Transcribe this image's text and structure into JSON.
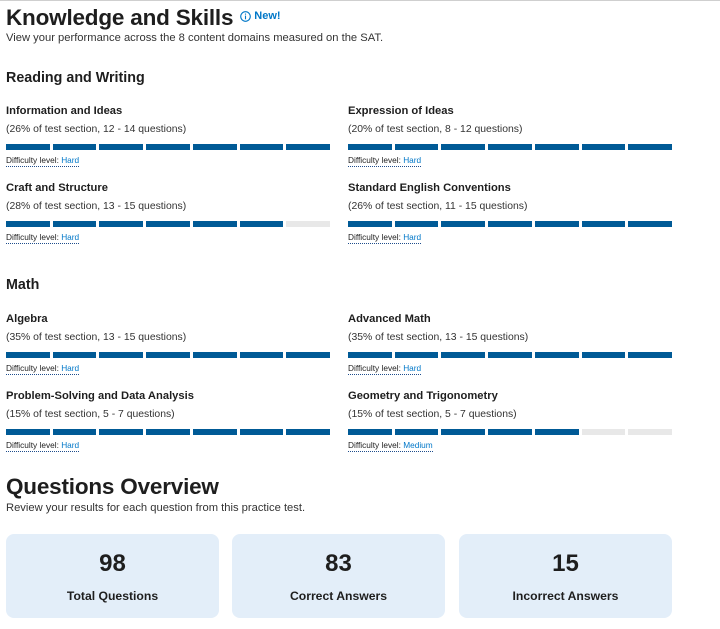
{
  "knowledge_skills": {
    "title": "Knowledge and Skills",
    "new_badge": "New!",
    "subtitle": "View your performance across the 8 content domains measured on the SAT.",
    "difficulty_label": "Difficulty level:"
  },
  "reading_writing": {
    "heading": "Reading and Writing",
    "domains": [
      {
        "name": "Information and Ideas",
        "meta": "(26% of test section, 12 - 14 questions)",
        "filled": 7,
        "total": 7,
        "difficulty": "Hard"
      },
      {
        "name": "Expression of Ideas",
        "meta": "(20% of test section, 8 - 12 questions)",
        "filled": 7,
        "total": 7,
        "difficulty": "Hard"
      },
      {
        "name": "Craft and Structure",
        "meta": "(28% of test section, 13 - 15 questions)",
        "filled": 6,
        "total": 7,
        "difficulty": "Hard"
      },
      {
        "name": "Standard English Conventions",
        "meta": "(26% of test section, 11 - 15 questions)",
        "filled": 7,
        "total": 7,
        "difficulty": "Hard"
      }
    ]
  },
  "math": {
    "heading": "Math",
    "domains": [
      {
        "name": "Algebra",
        "meta": "(35% of test section, 13 - 15 questions)",
        "filled": 7,
        "total": 7,
        "difficulty": "Hard"
      },
      {
        "name": "Advanced Math",
        "meta": "(35% of test section, 13 - 15 questions)",
        "filled": 7,
        "total": 7,
        "difficulty": "Hard"
      },
      {
        "name": "Problem-Solving and Data Analysis",
        "meta": "(15% of test section, 5 - 7 questions)",
        "filled": 7,
        "total": 7,
        "difficulty": "Hard"
      },
      {
        "name": "Geometry and Trigonometry",
        "meta": "(15% of test section, 5 - 7 questions)",
        "filled": 5,
        "total": 7,
        "difficulty": "Medium"
      }
    ]
  },
  "questions_overview": {
    "title": "Questions Overview",
    "subtitle": "Review your results for each question from this practice test.",
    "stats": [
      {
        "value": "98",
        "label": "Total Questions"
      },
      {
        "value": "83",
        "label": "Correct Answers"
      },
      {
        "value": "15",
        "label": "Incorrect Answers"
      }
    ]
  },
  "colors": {
    "bar_filled": "#005a96",
    "bar_empty": "#e8e8e8",
    "link_blue": "#0077c8",
    "card_bg": "#e3eef9"
  },
  "icons": {
    "new_badge_icon": "info-icon"
  }
}
